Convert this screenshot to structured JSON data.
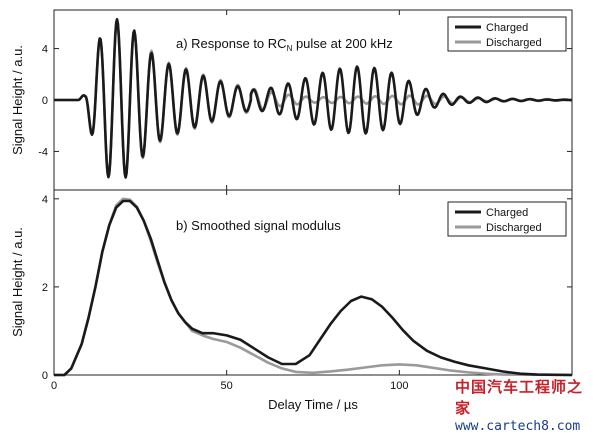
{
  "figure": {
    "xlabel": "Delay Time / µs",
    "x_ticks": [
      "0",
      "50",
      "100"
    ]
  },
  "chart_data": [
    {
      "type": "line",
      "title": "a) Response to RC",
      "title_sub": "N",
      "title_suffix": " pulse at 200 kHz",
      "ylabel": "Signal Height / a.u.",
      "xlim": [
        0,
        150
      ],
      "ylim": [
        -7,
        7
      ],
      "y_ticks": [
        -4,
        0,
        4
      ],
      "y_tick_labels": [
        "-4",
        "0",
        "4"
      ],
      "legend": "top-right",
      "grid": false,
      "series": [
        {
          "name": "Charged",
          "color": "#1a1a1a",
          "segments": [
            {
              "t0": 7,
              "t1": 23,
              "amp": [
                [
                  7,
                  0
                ],
                [
                  9,
                  0.5
                ],
                [
                  12,
                  4
                ],
                [
                  15,
                  5.9
                ],
                [
                  18,
                  6.3
                ],
                [
                  21,
                  6
                ],
                [
                  23,
                  5.5
                ]
              ],
              "freq": 0.2,
              "phase": 0
            },
            {
              "t0": 23,
              "t1": 57,
              "amp": [
                [
                  23,
                  5.5
                ],
                [
                  27,
                  3.9
                ],
                [
                  32,
                  2.9
                ],
                [
                  38,
                  2.4
                ],
                [
                  44,
                  1.8
                ],
                [
                  50,
                  1.3
                ],
                [
                  57,
                  0.8
                ]
              ],
              "freq": 0.2,
              "phase": 0
            },
            {
              "t0": 57,
              "t1": 150,
              "amp": [
                [
                  57,
                  0.8
                ],
                [
                  62,
                  0.9
                ],
                [
                  68,
                  1.3
                ],
                [
                  74,
                  1.8
                ],
                [
                  80,
                  2.3
                ],
                [
                  86,
                  2.6
                ],
                [
                  91,
                  2.6
                ],
                [
                  96,
                  2.3
                ],
                [
                  100,
                  1.9
                ],
                [
                  104,
                  1.3
                ],
                [
                  110,
                  0.6
                ],
                [
                  118,
                  0.25
                ],
                [
                  130,
                  0.1
                ],
                [
                  150,
                  0
                ]
              ],
              "freq": 0.2,
              "phase": 0.6
            }
          ]
        },
        {
          "name": "Discharged",
          "color": "#9a9a9a",
          "segments": [
            {
              "t0": 7,
              "t1": 23,
              "amp": [
                [
                  7,
                  0
                ],
                [
                  9,
                  0.5
                ],
                [
                  12,
                  4
                ],
                [
                  15,
                  5.8
                ],
                [
                  18,
                  6.2
                ],
                [
                  21,
                  5.9
                ],
                [
                  23,
                  5.4
                ]
              ],
              "freq": 0.2,
              "phase": 0
            },
            {
              "t0": 23,
              "t1": 57,
              "amp": [
                [
                  23,
                  5.4
                ],
                [
                  27,
                  4.1
                ],
                [
                  32,
                  3
                ],
                [
                  38,
                  2.5
                ],
                [
                  44,
                  1.9
                ],
                [
                  50,
                  1.4
                ],
                [
                  57,
                  0.9
                ]
              ],
              "freq": 0.2,
              "phase": 0
            },
            {
              "t0": 57,
              "t1": 150,
              "amp": [
                [
                  57,
                  0.9
                ],
                [
                  65,
                  0.5
                ],
                [
                  75,
                  0.2
                ],
                [
                  85,
                  0.25
                ],
                [
                  95,
                  0.3
                ],
                [
                  105,
                  0.35
                ],
                [
                  115,
                  0.25
                ],
                [
                  125,
                  0.1
                ],
                [
                  150,
                  0.05
                ]
              ],
              "freq": 0.2,
              "phase": 0.3
            }
          ]
        }
      ]
    },
    {
      "type": "line",
      "title": "b) Smoothed signal modulus",
      "ylabel": "Signal Height / a.u.",
      "xlim": [
        0,
        150
      ],
      "ylim": [
        0,
        4.2
      ],
      "y_ticks": [
        0,
        2,
        4
      ],
      "y_tick_labels": [
        "0",
        "2",
        "4"
      ],
      "legend": "top-right",
      "grid": false,
      "series": [
        {
          "name": "Charged",
          "color": "#1a1a1a",
          "points": [
            [
              0,
              0
            ],
            [
              3,
              0
            ],
            [
              5,
              0.15
            ],
            [
              8,
              0.7
            ],
            [
              10,
              1.3
            ],
            [
              12,
              2
            ],
            [
              14,
              2.8
            ],
            [
              16,
              3.4
            ],
            [
              18,
              3.8
            ],
            [
              20,
              3.95
            ],
            [
              22,
              3.95
            ],
            [
              24,
              3.8
            ],
            [
              26,
              3.5
            ],
            [
              28,
              3.1
            ],
            [
              30,
              2.6
            ],
            [
              32,
              2.1
            ],
            [
              34,
              1.7
            ],
            [
              36,
              1.4
            ],
            [
              38,
              1.2
            ],
            [
              40,
              1.05
            ],
            [
              43,
              0.95
            ],
            [
              46,
              0.95
            ],
            [
              50,
              0.9
            ],
            [
              54,
              0.8
            ],
            [
              58,
              0.6
            ],
            [
              62,
              0.4
            ],
            [
              66,
              0.25
            ],
            [
              70,
              0.25
            ],
            [
              74,
              0.45
            ],
            [
              77,
              0.8
            ],
            [
              80,
              1.15
            ],
            [
              83,
              1.45
            ],
            [
              86,
              1.68
            ],
            [
              89,
              1.78
            ],
            [
              92,
              1.72
            ],
            [
              95,
              1.55
            ],
            [
              98,
              1.3
            ],
            [
              101,
              1.02
            ],
            [
              104,
              0.78
            ],
            [
              108,
              0.55
            ],
            [
              112,
              0.4
            ],
            [
              116,
              0.3
            ],
            [
              120,
              0.22
            ],
            [
              125,
              0.15
            ],
            [
              130,
              0.08
            ],
            [
              135,
              0.03
            ],
            [
              140,
              0.01
            ],
            [
              150,
              0
            ]
          ]
        },
        {
          "name": "Discharged",
          "color": "#9a9a9a",
          "points": [
            [
              0,
              0
            ],
            [
              3,
              0
            ],
            [
              5,
              0.15
            ],
            [
              8,
              0.7
            ],
            [
              10,
              1.3
            ],
            [
              12,
              2
            ],
            [
              14,
              2.8
            ],
            [
              16,
              3.4
            ],
            [
              18,
              3.85
            ],
            [
              20,
              4
            ],
            [
              22,
              3.98
            ],
            [
              24,
              3.82
            ],
            [
              26,
              3.5
            ],
            [
              28,
              3.05
            ],
            [
              30,
              2.55
            ],
            [
              32,
              2.1
            ],
            [
              34,
              1.7
            ],
            [
              36,
              1.4
            ],
            [
              38,
              1.2
            ],
            [
              40,
              1.0
            ],
            [
              43,
              0.9
            ],
            [
              46,
              0.82
            ],
            [
              50,
              0.75
            ],
            [
              54,
              0.62
            ],
            [
              58,
              0.45
            ],
            [
              62,
              0.28
            ],
            [
              66,
              0.15
            ],
            [
              70,
              0.07
            ],
            [
              75,
              0.05
            ],
            [
              80,
              0.08
            ],
            [
              85,
              0.12
            ],
            [
              90,
              0.17
            ],
            [
              95,
              0.22
            ],
            [
              100,
              0.24
            ],
            [
              105,
              0.22
            ],
            [
              110,
              0.16
            ],
            [
              115,
              0.1
            ],
            [
              120,
              0.06
            ],
            [
              125,
              0.03
            ],
            [
              130,
              0.01
            ],
            [
              150,
              0
            ]
          ]
        }
      ]
    }
  ],
  "watermark": {
    "text_cn": "中国汽车工程师之家",
    "url": "www.cartech8.com"
  }
}
